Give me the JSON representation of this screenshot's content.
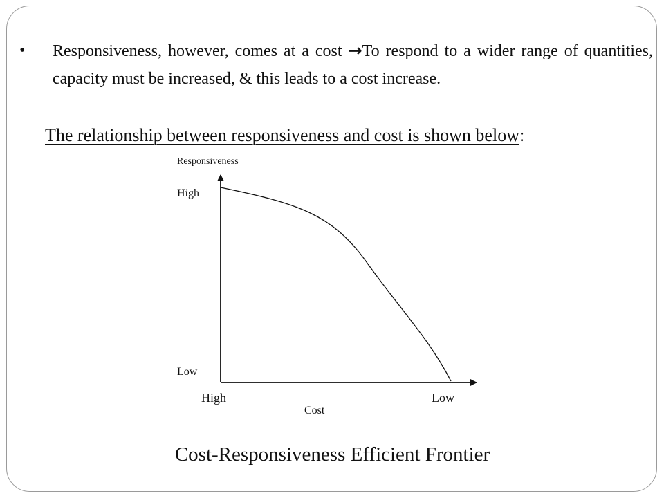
{
  "bullet": {
    "marker": "•",
    "text_before_arrow": "Responsiveness, however, comes at a cost ",
    "arrow_icon": "right-arrow-icon",
    "arrow_glyph": "→",
    "text_after_arrow": "To respond to a wider range of quantities, capacity must be increased, & this leads to a cost increase."
  },
  "relationship": {
    "text": "The relationship between responsiveness and cost is shown below",
    "trailing": ":"
  },
  "chart": {
    "y_axis_title": "Responsiveness",
    "y_high_label": "High",
    "y_low_label": "Low",
    "x_high_label": "High",
    "x_low_label": "Low",
    "x_axis_title": "Cost",
    "curve_description": "decreasing concave frontier from high responsiveness at high cost to low responsiveness at low cost"
  },
  "caption": "Cost-Responsiveness Efficient Frontier"
}
